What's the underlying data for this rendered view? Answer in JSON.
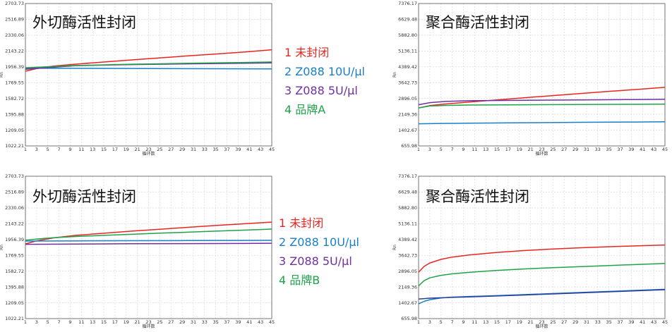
{
  "chart_data": [
    {
      "type": "line",
      "title": "外切酶活性封闭",
      "xlabel": "循环数",
      "ylabel": "Rn",
      "xlim": [
        1,
        45
      ],
      "ylim": [
        1022.21,
        2703.73
      ],
      "yticks": [
        "1022.21",
        "1209.05",
        "1395.88",
        "1582.72",
        "1769.55",
        "1956.39",
        "2143.22",
        "2330.06",
        "2516.89",
        "2703.73"
      ],
      "xticks": [
        1,
        3,
        5,
        7,
        9,
        11,
        13,
        15,
        17,
        19,
        21,
        23,
        25,
        27,
        29,
        31,
        33,
        35,
        37,
        39,
        41,
        43,
        45
      ],
      "grid": true,
      "series": [
        {
          "name": "1 未封闭",
          "color": "#e8251f",
          "x": [
            1,
            3,
            6,
            10,
            15,
            20,
            25,
            30,
            35,
            40,
            45
          ],
          "values": [
            1905,
            1935,
            1965,
            1988,
            2013,
            2038,
            2062,
            2085,
            2108,
            2130,
            2158
          ]
        },
        {
          "name": "2 Z088 10U/μl",
          "color": "#1a7fc8",
          "x": [
            1,
            45
          ],
          "values": [
            1940,
            1932
          ]
        },
        {
          "name": "3 Z088 5U/μl",
          "color": "#7030a0",
          "x": [
            1,
            10,
            20,
            30,
            40,
            45
          ],
          "values": [
            1928,
            1970,
            1983,
            1991,
            1999,
            2003
          ]
        },
        {
          "name": "4 品牌A",
          "color": "#1fa34a",
          "x": [
            1,
            10,
            20,
            30,
            40,
            45
          ],
          "values": [
            1945,
            1972,
            1987,
            1998,
            2008,
            2014
          ]
        }
      ]
    },
    {
      "type": "line",
      "title": "聚合酶活性封闭",
      "xlabel": "循环数",
      "ylabel": "Rn",
      "xlim": [
        1,
        45
      ],
      "ylim": [
        655.98,
        7376.17
      ],
      "yticks": [
        "655.98",
        "1402.67",
        "2149.36",
        "2896.05",
        "3642.73",
        "4389.42",
        "5136.11",
        "5882.80",
        "6629.48",
        "7376.17"
      ],
      "xticks": [
        1,
        3,
        5,
        7,
        9,
        11,
        13,
        15,
        17,
        19,
        21,
        23,
        25,
        27,
        29,
        31,
        33,
        35,
        37,
        39,
        41,
        43,
        45
      ],
      "grid": true,
      "series": [
        {
          "name": "1",
          "color": "#e8251f",
          "x": [
            1,
            3,
            6,
            10,
            15,
            20,
            25,
            30,
            35,
            40,
            45
          ],
          "values": [
            2450,
            2560,
            2640,
            2730,
            2830,
            2930,
            3030,
            3130,
            3230,
            3320,
            3420
          ]
        },
        {
          "name": "2",
          "color": "#1a7fc8",
          "x": [
            1,
            10,
            20,
            30,
            40,
            45
          ],
          "values": [
            1700,
            1730,
            1750,
            1770,
            1785,
            1795
          ]
        },
        {
          "name": "3",
          "color": "#7030a0",
          "x": [
            1,
            3,
            6,
            10,
            20,
            30,
            40,
            45
          ],
          "values": [
            2600,
            2700,
            2760,
            2790,
            2810,
            2830,
            2845,
            2855
          ]
        },
        {
          "name": "4",
          "color": "#1fa34a",
          "x": [
            1,
            3,
            6,
            10,
            20,
            30,
            40,
            45
          ],
          "values": [
            2450,
            2540,
            2570,
            2585,
            2600,
            2610,
            2620,
            2625
          ]
        }
      ]
    },
    {
      "type": "line",
      "title": "外切酶活性封闭",
      "xlabel": "循环数",
      "ylabel": "Rn",
      "xlim": [
        1,
        45
      ],
      "ylim": [
        1022.21,
        2703.73
      ],
      "yticks": [
        "1022.21",
        "1209.05",
        "1395.88",
        "1582.72",
        "1769.55",
        "1956.39",
        "2143.22",
        "2330.06",
        "2516.89",
        "2703.73"
      ],
      "xticks": [
        1,
        3,
        5,
        7,
        9,
        11,
        13,
        15,
        17,
        19,
        21,
        23,
        25,
        27,
        29,
        31,
        33,
        35,
        37,
        39,
        41,
        43,
        45
      ],
      "grid": true,
      "series": [
        {
          "name": "1 未封闭",
          "color": "#e8251f",
          "x": [
            1,
            3,
            6,
            10,
            15,
            20,
            25,
            30,
            35,
            40,
            45
          ],
          "values": [
            1905,
            1940,
            1975,
            2005,
            2030,
            2055,
            2078,
            2100,
            2122,
            2142,
            2162
          ]
        },
        {
          "name": "2 Z088 10U/μl",
          "color": "#1a7fc8",
          "x": [
            1,
            10,
            20,
            30,
            40,
            45
          ],
          "values": [
            1938,
            1940,
            1942,
            1944,
            1945,
            1946
          ]
        },
        {
          "name": "3 Z088 5U/μl",
          "color": "#7030a0",
          "x": [
            1,
            10,
            20,
            30,
            40,
            45
          ],
          "values": [
            1900,
            1903,
            1906,
            1908,
            1910,
            1912
          ]
        },
        {
          "name": "4 品牌B",
          "color": "#1fa34a",
          "x": [
            1,
            3,
            6,
            10,
            15,
            20,
            25,
            30,
            35,
            40,
            45
          ],
          "values": [
            1948,
            1962,
            1978,
            1992,
            2005,
            2018,
            2031,
            2043,
            2055,
            2067,
            2079
          ]
        }
      ]
    },
    {
      "type": "line",
      "title": "聚合酶活性封闭",
      "xlabel": "循环数",
      "ylabel": "Rn",
      "xlim": [
        1,
        45
      ],
      "ylim": [
        655.98,
        7376.17
      ],
      "yticks": [
        "655.98",
        "1402.67",
        "2149.36",
        "2896.05",
        "3642.73",
        "4389.42",
        "5136.11",
        "5882.80",
        "6629.48",
        "7376.17"
      ],
      "xticks": [
        1,
        3,
        5,
        7,
        9,
        11,
        13,
        15,
        17,
        19,
        21,
        23,
        25,
        27,
        29,
        31,
        33,
        35,
        37,
        39,
        41,
        43,
        45
      ],
      "grid": true,
      "series": [
        {
          "name": "1",
          "color": "#e8251f",
          "x": [
            1,
            2,
            3,
            5,
            7,
            10,
            15,
            20,
            25,
            30,
            35,
            40,
            45
          ],
          "values": [
            2850,
            3120,
            3280,
            3450,
            3560,
            3660,
            3780,
            3870,
            3940,
            4000,
            4050,
            4090,
            4130
          ]
        },
        {
          "name": "2",
          "color": "#1a7fc8",
          "x": [
            1,
            2,
            3,
            5,
            7,
            10,
            15,
            20,
            25,
            30,
            35,
            40,
            45
          ],
          "values": [
            1350,
            1470,
            1550,
            1630,
            1670,
            1700,
            1740,
            1790,
            1840,
            1890,
            1940,
            1990,
            2040
          ]
        },
        {
          "name": "3",
          "color": "#2c3d9a",
          "x": [
            1,
            3,
            6,
            10,
            15,
            20,
            25,
            30,
            35,
            40,
            45
          ],
          "values": [
            1580,
            1620,
            1650,
            1680,
            1725,
            1770,
            1820,
            1870,
            1920,
            1970,
            2020
          ]
        },
        {
          "name": "4",
          "color": "#1fa34a",
          "x": [
            1,
            2,
            3,
            5,
            7,
            10,
            15,
            20,
            25,
            30,
            35,
            40,
            45
          ],
          "values": [
            2200,
            2450,
            2580,
            2700,
            2770,
            2840,
            2930,
            3000,
            3060,
            3110,
            3160,
            3210,
            3260
          ]
        }
      ]
    }
  ],
  "legend_top": [
    {
      "text": "1 未封闭",
      "color": "#e8251f"
    },
    {
      "text": "2 Z088   10U/μl",
      "color": "#1a7fc8"
    },
    {
      "text": "3 Z088    5U/μl",
      "color": "#7030a0"
    },
    {
      "text": "4 品牌A",
      "color": "#1fa34a"
    }
  ],
  "legend_bottom": [
    {
      "text": "1 未封闭",
      "color": "#e8251f"
    },
    {
      "text": "2 Z088   10U/μl",
      "color": "#1a7fc8"
    },
    {
      "text": "3 Z088    5U/μl",
      "color": "#7030a0"
    },
    {
      "text": "4 品牌B",
      "color": "#1fa34a"
    }
  ]
}
